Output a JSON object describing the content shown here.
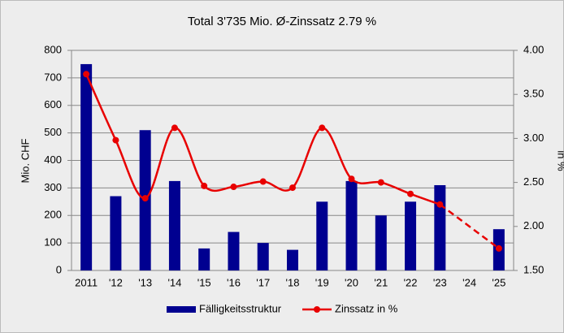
{
  "chart_data": {
    "type": "bar_line",
    "title": "Total 3'735 Mio. Ø-Zinssatz 2.79 %",
    "ylabel": "Mio. CHF",
    "y2label": "in %",
    "categories": [
      "2011",
      "'12",
      "'13",
      "'14",
      "'15",
      "'16",
      "'17",
      "'18",
      "'19",
      "'20",
      "'21",
      "'22",
      "'23",
      "'24",
      "'25"
    ],
    "series": [
      {
        "name": "Fälligkeitsstruktur",
        "color": "#000090",
        "type": "bar",
        "values": [
          750,
          270,
          510,
          325,
          80,
          140,
          100,
          75,
          250,
          325,
          200,
          250,
          310,
          null,
          150
        ]
      },
      {
        "name": "Zinssatz in %",
        "color": "#e80000",
        "type": "line",
        "axis": "y2",
        "values": [
          3.73,
          2.98,
          2.32,
          3.12,
          2.46,
          2.45,
          2.51,
          2.44,
          3.12,
          2.54,
          2.5,
          2.37,
          2.25,
          null,
          1.75
        ]
      }
    ],
    "ylim": [
      0,
      800
    ],
    "yticks": [
      0,
      100,
      200,
      300,
      400,
      500,
      600,
      700,
      800
    ],
    "y2lim": [
      1.5,
      4
    ],
    "y2ticks": [
      {
        "value": 1.5,
        "label": "1.50"
      },
      {
        "value": 2,
        "label": "2.00"
      },
      {
        "value": 2.5,
        "label": "2.50"
      },
      {
        "value": 3,
        "label": "3.00"
      },
      {
        "value": 3.5,
        "label": "3.50"
      },
      {
        "value": 4,
        "label": "4.00"
      }
    ],
    "grid": true
  }
}
